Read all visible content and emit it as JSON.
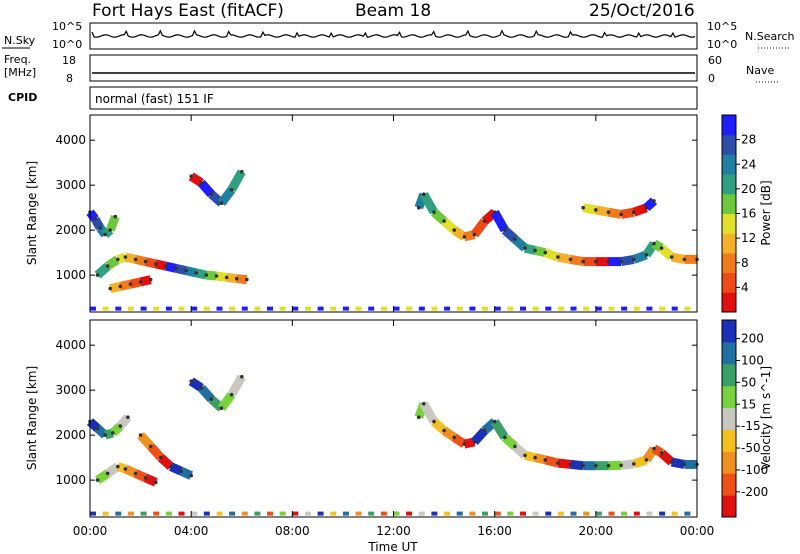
{
  "header": {
    "station": "Fort Hays East (fitACF)",
    "beam": "Beam 18",
    "date": "25/Oct/2016"
  },
  "panels": {
    "nsky_label": "N.Sky",
    "nsearch_label": "N.Search",
    "nsky_ticks": [
      "10^5",
      "10^0"
    ],
    "nsearch_ticks": [
      "10^5",
      "10^0"
    ],
    "freq_label_1": "Freq.",
    "freq_label_2": "[MHz]",
    "freq_ticks": [
      "18",
      "8"
    ],
    "nave_label": "Nave",
    "nave_ticks": [
      "60",
      "0"
    ],
    "cpid_label": "CPID",
    "cpid_text": "normal (fast) 151 IF"
  },
  "chart_data": [
    {
      "type": "heatmap",
      "title": "",
      "xlabel": "Time UT",
      "ylabel": "Slant Range [km]",
      "x_ticks": [
        "00:00",
        "04:00",
        "08:00",
        "12:00",
        "16:00",
        "20:00",
        "00:00"
      ],
      "y_ticks": [
        "1000",
        "2000",
        "3000",
        "4000"
      ],
      "ylim": [
        180,
        4560
      ],
      "colorbar_label": "Power [dB]",
      "colorbar_ticks": [
        "4",
        "8",
        "12",
        "16",
        "20",
        "24",
        "28"
      ],
      "colorbar_colors": [
        "#1d1dff",
        "#2b4fa8",
        "#1f7fa0",
        "#2fa080",
        "#6ec83b",
        "#e0e02a",
        "#f5b02a",
        "#f07a1c",
        "#ee4a18",
        "#e01010"
      ],
      "series": [
        {
          "x": [
            0.0,
            0.2,
            0.4,
            0.6,
            0.8,
            1.0
          ],
          "y": [
            2400,
            2250,
            2050,
            1900,
            2000,
            2300
          ]
        },
        {
          "x": [
            0.3,
            0.7,
            1.1,
            1.4,
            1.8,
            2.2,
            2.6,
            3.0,
            3.4,
            3.8,
            4.2,
            4.6,
            5.0,
            5.4,
            5.8,
            6.2
          ],
          "y": [
            1000,
            1200,
            1350,
            1400,
            1350,
            1300,
            1250,
            1200,
            1150,
            1100,
            1050,
            1000,
            980,
            950,
            920,
            900
          ]
        },
        {
          "x": [
            0.8,
            1.2,
            1.6,
            2.0,
            2.4
          ],
          "y": [
            700,
            750,
            800,
            850,
            900
          ]
        },
        {
          "x": [
            4.0,
            4.4,
            4.8,
            5.2,
            5.6,
            6.0
          ],
          "y": [
            3200,
            3050,
            2800,
            2600,
            2900,
            3300
          ]
        },
        {
          "x": [
            13.0,
            13.2,
            13.6,
            14.0,
            14.4,
            14.8,
            15.2,
            15.6,
            16.0,
            16.4,
            16.8,
            17.2,
            17.6,
            18.0,
            18.5,
            19.0,
            19.5,
            20.0,
            20.5,
            21.0,
            21.5,
            22.0,
            22.3,
            22.6,
            23.0,
            23.5,
            24.0
          ],
          "y": [
            2500,
            2800,
            2400,
            2200,
            2000,
            1850,
            1900,
            2200,
            2400,
            2000,
            1800,
            1600,
            1550,
            1500,
            1400,
            1350,
            1300,
            1300,
            1300,
            1300,
            1350,
            1450,
            1700,
            1600,
            1400,
            1350,
            1350
          ]
        },
        {
          "x": [
            19.5,
            20.0,
            20.5,
            21.0,
            21.5,
            22.0,
            22.3
          ],
          "y": [
            2500,
            2450,
            2400,
            2350,
            2400,
            2500,
            2650
          ]
        }
      ]
    },
    {
      "type": "heatmap",
      "title": "",
      "xlabel": "Time UT",
      "ylabel": "Slant Range [km]",
      "x_ticks": [
        "00:00",
        "04:00",
        "08:00",
        "12:00",
        "16:00",
        "20:00",
        "00:00"
      ],
      "y_ticks": [
        "1000",
        "2000",
        "3000",
        "4000"
      ],
      "ylim": [
        180,
        4560
      ],
      "colorbar_label": "Velocity [m s^-1]",
      "colorbar_ticks": [
        "200",
        "100",
        "50",
        "15",
        "-15",
        "-50",
        "-100",
        "-200"
      ],
      "colorbar_colors": [
        "#1c2fb8",
        "#1f6fa0",
        "#3aa065",
        "#78d23c",
        "#c8c8c0",
        "#f4c020",
        "#f09020",
        "#ee5018",
        "#e01010"
      ],
      "series": [
        {
          "x": [
            0.0,
            0.3,
            0.6,
            0.9,
            1.2,
            1.5
          ],
          "y": [
            2300,
            2150,
            2000,
            2050,
            2200,
            2400
          ]
        },
        {
          "x": [
            0.3,
            0.7,
            1.1,
            1.4,
            1.8,
            2.2,
            2.6
          ],
          "y": [
            1000,
            1150,
            1300,
            1250,
            1150,
            1050,
            950
          ]
        },
        {
          "x": [
            2.0,
            2.4,
            2.8,
            3.2,
            3.6,
            4.0
          ],
          "y": [
            2000,
            1750,
            1500,
            1300,
            1200,
            1100
          ]
        },
        {
          "x": [
            4.0,
            4.4,
            4.8,
            5.2,
            5.6,
            6.0
          ],
          "y": [
            3200,
            3050,
            2800,
            2600,
            2900,
            3300
          ]
        },
        {
          "x": [
            13.0,
            13.2,
            13.6,
            14.0,
            14.4,
            14.8,
            15.2,
            15.6,
            16.0,
            16.4,
            16.8,
            17.2,
            17.6,
            18.0,
            18.5,
            19.0,
            19.5,
            20.0,
            20.5,
            21.0,
            21.5,
            22.0,
            22.3,
            22.6,
            23.0,
            23.5,
            24.0
          ],
          "y": [
            2400,
            2700,
            2300,
            2100,
            1950,
            1800,
            1850,
            2100,
            2300,
            1950,
            1750,
            1550,
            1500,
            1450,
            1380,
            1350,
            1320,
            1320,
            1320,
            1330,
            1360,
            1450,
            1700,
            1600,
            1400,
            1350,
            1350
          ]
        }
      ]
    }
  ]
}
